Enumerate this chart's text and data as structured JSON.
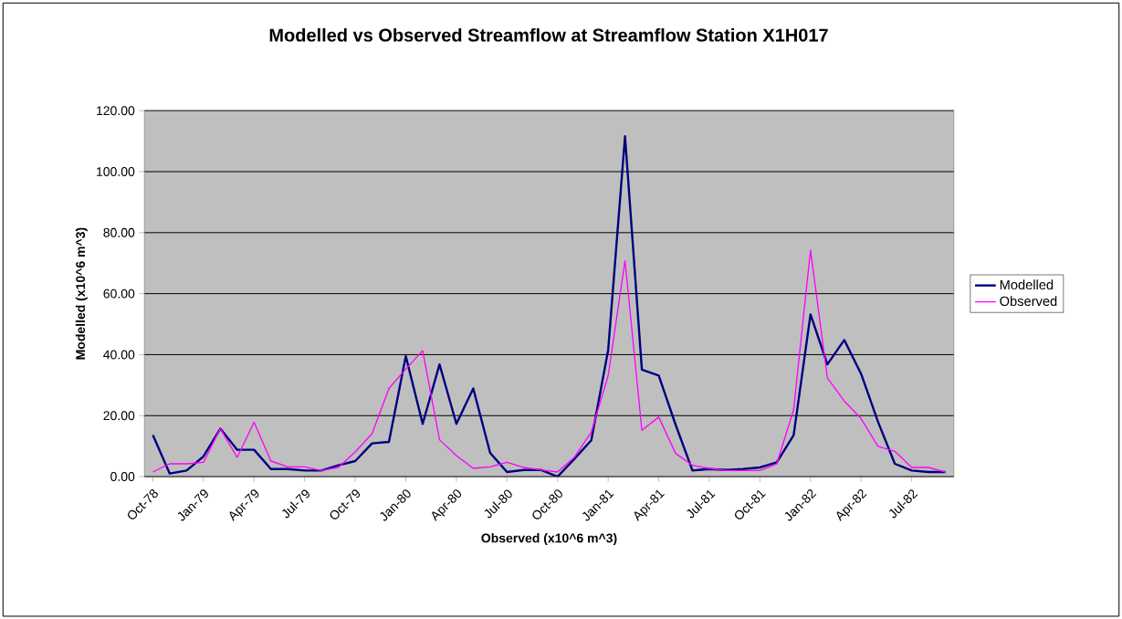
{
  "chart_data": {
    "type": "line",
    "title": "Modelled vs Observed Streamflow at Streamflow Station X1H017",
    "xlabel": "Observed (x10^6 m^3)",
    "ylabel": "Modelled (x10^6 m^3)",
    "categories": [
      "Oct-78",
      null,
      null,
      "Jan-79",
      null,
      null,
      "Apr-79",
      null,
      null,
      "Jul-79",
      null,
      null,
      "Oct-79",
      null,
      null,
      "Jan-80",
      null,
      null,
      "Apr-80",
      null,
      null,
      "Jul-80",
      null,
      null,
      "Oct-80",
      null,
      null,
      "Jan-81",
      null,
      null,
      "Apr-81",
      null,
      null,
      "Jul-81",
      null,
      null,
      "Oct-81",
      null,
      null,
      "Jan-82",
      null,
      null,
      "Apr-82",
      null,
      null,
      "Jul-82",
      null,
      null
    ],
    "series": [
      {
        "name": "Modelled",
        "color": "#000080",
        "values": [
          13.6,
          1.0,
          2.0,
          6.6,
          15.7,
          8.8,
          8.8,
          2.5,
          2.5,
          2.0,
          2.0,
          3.7,
          5.1,
          10.9,
          11.4,
          39.5,
          17.3,
          36.8,
          17.3,
          28.9,
          7.8,
          1.5,
          2.2,
          2.2,
          0.0,
          5.8,
          11.9,
          41.5,
          111.6,
          35.1,
          33.1,
          17.0,
          2.0,
          2.5,
          2.2,
          2.5,
          3.0,
          4.7,
          13.6,
          53.2,
          36.8,
          44.8,
          33.7,
          18.0,
          4.2,
          2.0,
          1.5,
          1.5
        ]
      },
      {
        "name": "Observed",
        "color": "#ff00ff",
        "values": [
          1.5,
          4.2,
          4.2,
          4.7,
          15.7,
          6.3,
          17.8,
          5.1,
          3.2,
          3.2,
          2.0,
          3.0,
          8.1,
          14.1,
          28.9,
          35.3,
          41.3,
          12.1,
          6.9,
          2.7,
          3.2,
          4.7,
          3.0,
          2.2,
          1.5,
          6.4,
          14.6,
          33.1,
          70.8,
          15.2,
          19.5,
          7.6,
          3.7,
          2.7,
          2.0,
          2.0,
          2.0,
          4.2,
          22.0,
          74.3,
          32.4,
          24.8,
          19.0,
          9.9,
          8.3,
          3.0,
          3.0,
          1.5
        ]
      }
    ],
    "ylim": [
      0,
      120
    ],
    "yticks": [
      {
        "value": 0,
        "label": "0.00"
      },
      {
        "value": 20,
        "label": "20.00"
      },
      {
        "value": 40,
        "label": "40.00"
      },
      {
        "value": 60,
        "label": "60.00"
      },
      {
        "value": 80,
        "label": "80.00"
      },
      {
        "value": 100,
        "label": "100.00"
      },
      {
        "value": 120,
        "label": "120.00"
      }
    ],
    "grid": "y",
    "legend": "right",
    "marker": "none",
    "line_style": "solid"
  }
}
